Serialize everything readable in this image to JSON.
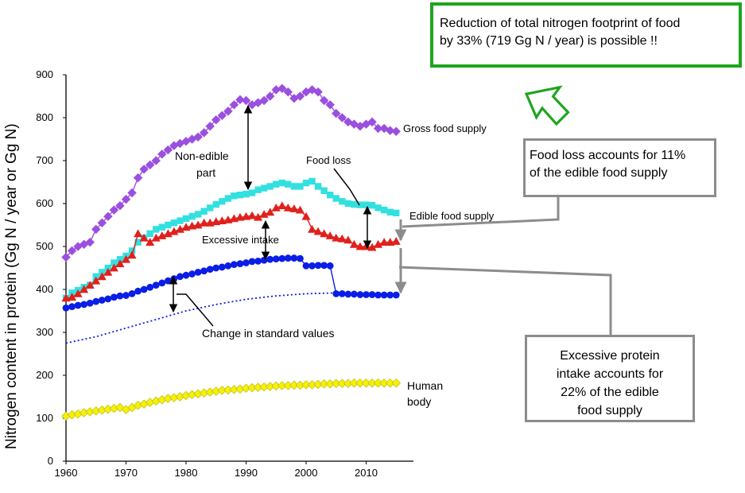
{
  "chart_data": {
    "type": "line",
    "ylabel": "Nitrogen content in protein  (Gg N / year or Gg N)",
    "xlim": [
      1960,
      2017
    ],
    "ylim": [
      0,
      900
    ],
    "x_ticks": [
      "1960",
      "1970",
      "1980",
      "1990",
      "2000",
      "2010"
    ],
    "y_ticks": [
      "0",
      "100",
      "200",
      "300",
      "400",
      "500",
      "600",
      "700",
      "800",
      "900"
    ],
    "series": [
      {
        "name": "Gross food supply",
        "color": "#9b4fe0",
        "marker": "diamond",
        "x": [
          1960,
          1961,
          1962,
          1963,
          1964,
          1965,
          1966,
          1967,
          1968,
          1969,
          1970,
          1971,
          1972,
          1973,
          1974,
          1975,
          1976,
          1977,
          1978,
          1979,
          1980,
          1981,
          1982,
          1983,
          1984,
          1985,
          1986,
          1987,
          1988,
          1989,
          1990,
          1991,
          1992,
          1993,
          1994,
          1995,
          1996,
          1997,
          1998,
          1999,
          2000,
          2001,
          2002,
          2003,
          2004,
          2005,
          2006,
          2007,
          2008,
          2009,
          2010,
          2011,
          2012,
          2013,
          2014,
          2015
        ],
        "values": [
          475,
          490,
          500,
          505,
          510,
          540,
          555,
          570,
          585,
          595,
          610,
          625,
          660,
          680,
          690,
          700,
          715,
          725,
          735,
          740,
          745,
          750,
          755,
          765,
          780,
          795,
          805,
          815,
          830,
          842,
          840,
          830,
          835,
          840,
          850,
          865,
          868,
          860,
          845,
          850,
          860,
          865,
          860,
          840,
          830,
          810,
          800,
          790,
          785,
          780,
          785,
          790,
          775,
          775,
          770,
          768
        ]
      },
      {
        "name": "Edible food supply",
        "color": "#33e0e0",
        "marker": "square",
        "x": [
          1960,
          1961,
          1962,
          1963,
          1964,
          1965,
          1966,
          1967,
          1968,
          1969,
          1970,
          1971,
          1972,
          1973,
          1974,
          1975,
          1976,
          1977,
          1978,
          1979,
          1980,
          1981,
          1982,
          1983,
          1984,
          1985,
          1986,
          1987,
          1988,
          1989,
          1990,
          1991,
          1992,
          1993,
          1994,
          1995,
          1996,
          1997,
          1998,
          1999,
          2000,
          2001,
          2002,
          2003,
          2004,
          2005,
          2006,
          2007,
          2008,
          2009,
          2010,
          2011,
          2012,
          2013,
          2014,
          2015
        ],
        "values": [
          380,
          392,
          398,
          405,
          410,
          430,
          440,
          450,
          462,
          470,
          478,
          490,
          510,
          520,
          530,
          540,
          545,
          550,
          555,
          560,
          565,
          570,
          575,
          582,
          590,
          598,
          605,
          612,
          618,
          620,
          622,
          625,
          632,
          636,
          640,
          645,
          648,
          645,
          640,
          640,
          648,
          652,
          640,
          630,
          620,
          612,
          605,
          600,
          598,
          597,
          597,
          596,
          590,
          585,
          580,
          578
        ]
      },
      {
        "name": "Food loss",
        "color": "#e0201c",
        "marker": "triangle",
        "x": [
          1960,
          1961,
          1962,
          1963,
          1964,
          1965,
          1966,
          1967,
          1968,
          1969,
          1970,
          1971,
          1972,
          1973,
          1974,
          1975,
          1976,
          1977,
          1978,
          1979,
          1980,
          1981,
          1982,
          1983,
          1984,
          1985,
          1986,
          1987,
          1988,
          1989,
          1990,
          1991,
          1992,
          1993,
          1994,
          1995,
          1996,
          1997,
          1998,
          1999,
          2000,
          2001,
          2002,
          2003,
          2004,
          2005,
          2006,
          2007,
          2008,
          2009,
          2010,
          2011,
          2012,
          2013,
          2014,
          2015
        ],
        "values": [
          380,
          382,
          390,
          400,
          410,
          420,
          430,
          440,
          450,
          460,
          470,
          480,
          530,
          520,
          510,
          520,
          525,
          530,
          535,
          540,
          545,
          548,
          550,
          555,
          555,
          558,
          560,
          562,
          565,
          568,
          570,
          572,
          568,
          575,
          580,
          590,
          595,
          590,
          588,
          585,
          570,
          540,
          535,
          530,
          525,
          520,
          518,
          515,
          505,
          500,
          500,
          498,
          505,
          510,
          510,
          512
        ]
      },
      {
        "name": "Excessive intake",
        "color": "#0a1ee6",
        "marker": "circle",
        "x": [
          1960,
          1961,
          1962,
          1963,
          1964,
          1965,
          1966,
          1967,
          1968,
          1969,
          1970,
          1971,
          1972,
          1973,
          1974,
          1975,
          1976,
          1977,
          1978,
          1979,
          1980,
          1981,
          1982,
          1983,
          1984,
          1985,
          1986,
          1987,
          1988,
          1989,
          1990,
          1991,
          1992,
          1993,
          1994,
          1995,
          1996,
          1997,
          1998,
          1999,
          2000,
          2001,
          2002,
          2003,
          2004,
          2005,
          2006,
          2007,
          2008,
          2009,
          2010,
          2011,
          2012,
          2013,
          2014,
          2015
        ],
        "values": [
          357,
          360,
          363,
          365,
          368,
          372,
          375,
          378,
          382,
          385,
          386,
          390,
          396,
          400,
          405,
          410,
          415,
          420,
          425,
          430,
          433,
          436,
          440,
          443,
          447,
          450,
          452,
          455,
          458,
          460,
          462,
          465,
          466,
          468,
          470,
          471,
          472,
          473,
          473,
          472,
          455,
          455,
          456,
          456,
          455,
          390,
          390,
          389,
          389,
          388,
          388,
          388,
          387,
          387,
          387,
          387
        ]
      },
      {
        "name": "Change in standard values",
        "color": "#0a1ee6",
        "marker": "none",
        "x": [
          1960,
          1965,
          1970,
          1975,
          1980,
          1985,
          1990,
          1995,
          2000,
          2005
        ],
        "values": [
          275,
          290,
          310,
          330,
          350,
          365,
          377,
          385,
          390,
          392
        ]
      },
      {
        "name": "Human body",
        "color": "#f5f00a",
        "marker": "diamond",
        "x": [
          1960,
          1961,
          1962,
          1963,
          1964,
          1965,
          1966,
          1967,
          1968,
          1969,
          1970,
          1971,
          1972,
          1973,
          1974,
          1975,
          1976,
          1977,
          1978,
          1979,
          1980,
          1981,
          1982,
          1983,
          1984,
          1985,
          1986,
          1987,
          1988,
          1989,
          1990,
          1991,
          1992,
          1993,
          1994,
          1995,
          1996,
          1997,
          1998,
          1999,
          2000,
          2001,
          2002,
          2003,
          2004,
          2005,
          2006,
          2007,
          2008,
          2009,
          2010,
          2011,
          2012,
          2013,
          2014,
          2015
        ],
        "values": [
          105,
          108,
          110,
          113,
          115,
          117,
          119,
          121,
          123,
          125,
          120,
          125,
          130,
          133,
          137,
          140,
          143,
          146,
          148,
          150,
          153,
          155,
          157,
          159,
          161,
          163,
          165,
          166,
          167,
          168,
          170,
          171,
          172,
          173,
          174,
          175,
          176,
          176,
          177,
          177,
          178,
          178,
          179,
          180,
          180,
          181,
          181,
          181,
          182,
          182,
          182,
          182,
          182,
          182,
          182,
          182
        ]
      }
    ],
    "annotations": {
      "non_edible_1": "Non-edible",
      "non_edible_2": "part",
      "food_loss": "Food loss",
      "excessive_intake": "Excessive intake",
      "change_standard": "Change in standard values",
      "gross_food_supply": "Gross food supply",
      "edible_food_supply": "Edible food supply",
      "human_body_1": "Human",
      "human_body_2": "body"
    }
  },
  "callouts": {
    "reduction_1": "Reduction of total nitrogen footprint of food",
    "reduction_2": "by 33% (719 Gg N / year) is possible !!",
    "food_loss_1": "Food loss accounts for 11%",
    "food_loss_2": "of the edible food supply",
    "excess_1": "Excessive protein",
    "excess_2": "intake accounts for",
    "excess_3": "22% of the edible",
    "excess_4": "food supply"
  },
  "colors": {
    "callout_green": "#1ea51e",
    "callout_gray": "#8c8c8c"
  }
}
